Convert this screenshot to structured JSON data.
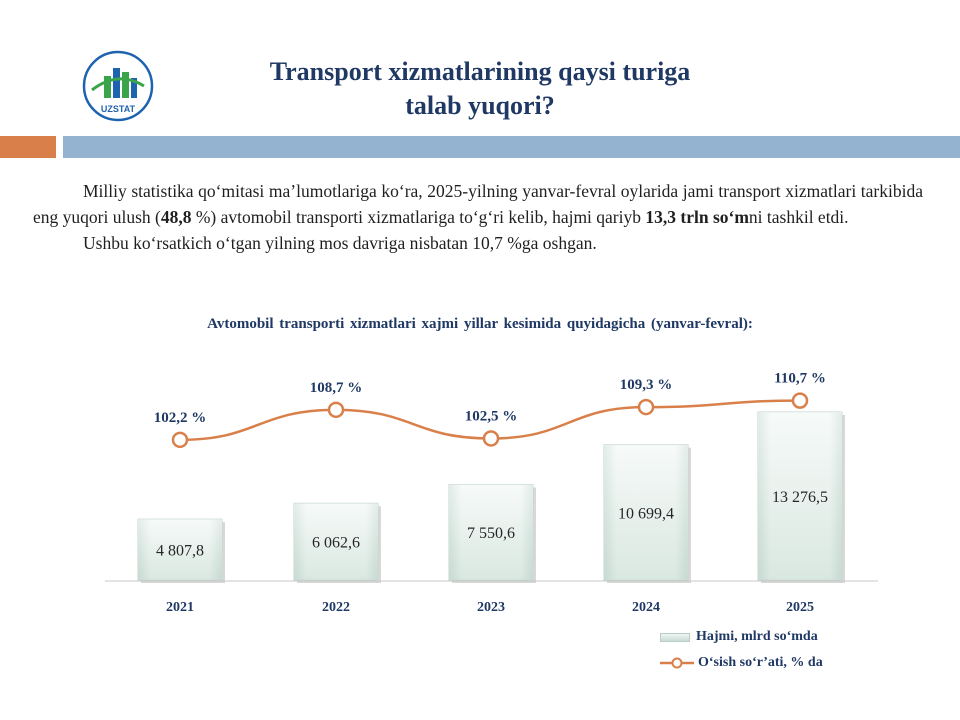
{
  "logo": {
    "text": "UZSTAT",
    "colors": [
      "#1e63b0",
      "#3aa44a"
    ]
  },
  "header": {
    "title_line1": "Transport xizmatlarining qaysi turiga",
    "title_line2": "talab yuqori?"
  },
  "body": {
    "p1_a": "Milliy statistika qo‘mitasi ma’lumotlariga ko‘ra, 2025-yilning yanvar-fevral oylarida jami transport xizmatlari tarkibida eng yuqori ulush (",
    "p1_b": "48,8",
    "p1_c": " %) avtomobil transporti xizmatlariga to‘g‘ri kelib, hajmi qariyb ",
    "p1_d": "13,3 trln so‘m",
    "p1_e": "ni tashkil etdi.",
    "p2": "Ushbu ko‘rsatkich o‘tgan yilning mos davriga nisbatan 10,7 %ga oshgan."
  },
  "colors": {
    "accent_orange": "#d9804a",
    "band_blue": "#94b3d0",
    "title_navy": "#1f3864",
    "line": "#d9804a"
  },
  "chart_data": {
    "type": "bar",
    "title": "Avtomobil transporti xizmatlari xajmi yillar kesimida quyidagicha (yanvar-fevral):",
    "categories": [
      "2021",
      "2022",
      "2023",
      "2024",
      "2025"
    ],
    "series": [
      {
        "name": "Hajmi, mlrd so‘mda",
        "type": "bar",
        "values": [
          4807.8,
          6062.6,
          7550.6,
          10699.4,
          13276.5
        ],
        "labels": [
          "4 807,8",
          "6 062,6",
          "7 550,6",
          "10 699,4",
          "13 276,5"
        ]
      },
      {
        "name": "O‘sish so‘r’ati, % da",
        "type": "line",
        "values": [
          102.2,
          108.7,
          102.5,
          109.3,
          110.7
        ],
        "labels": [
          "102,2 %",
          "108,7 %",
          "102,5 %",
          "109,3 %",
          "110,7 %"
        ]
      }
    ],
    "ylim": [
      0,
      13276.5
    ],
    "grid": false,
    "legend": "bottom-right"
  }
}
